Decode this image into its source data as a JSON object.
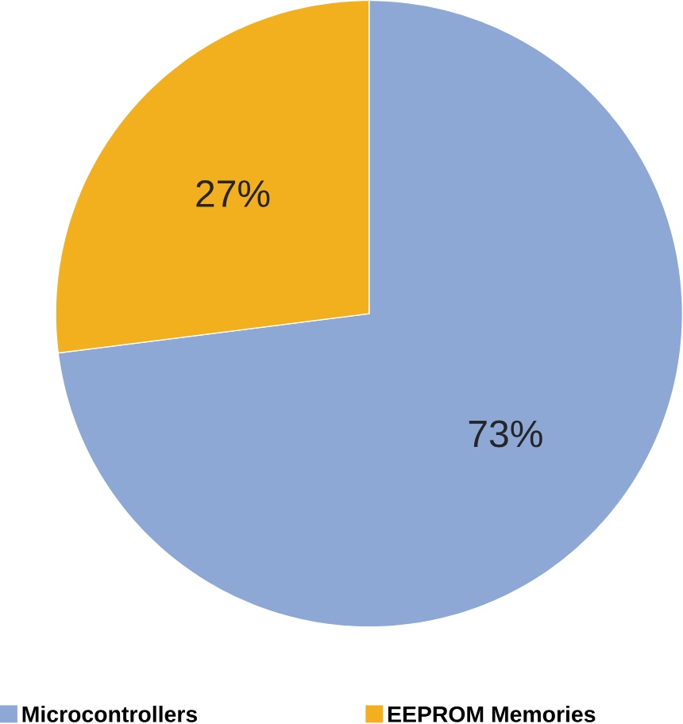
{
  "chart_data": {
    "type": "pie",
    "categories": [
      "Microcontrollers",
      "EEPROM Memories"
    ],
    "values": [
      73,
      27
    ],
    "colors": [
      "#8ea8d6",
      "#f2b01e"
    ],
    "value_labels": [
      "73%",
      "27%"
    ],
    "legend": "bottom"
  }
}
